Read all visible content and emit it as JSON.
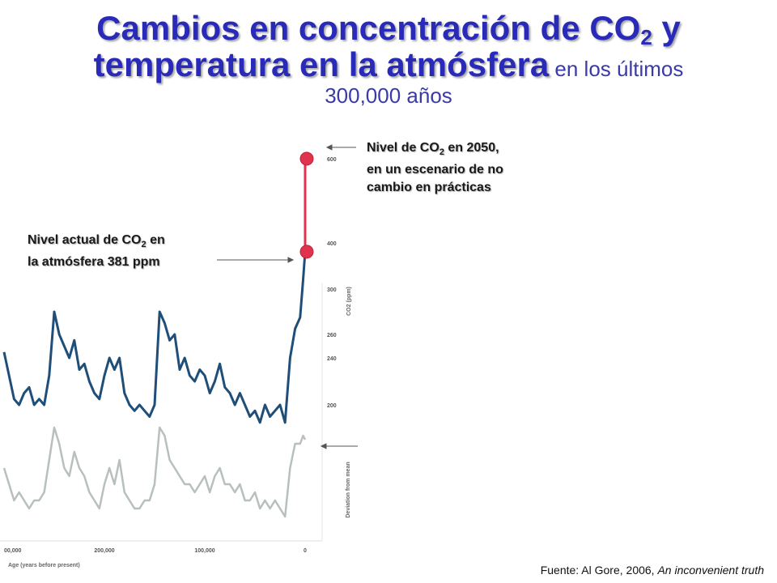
{
  "title": {
    "line1_a": "Cambios en concentración de CO",
    "line1_sub": "2",
    "line1_b": " y",
    "line2_bold": "temperatura en la atmósfera",
    "line2_rest": " en los últimos",
    "line3": "300,000 años"
  },
  "annotations": {
    "future_a": "Nivel de CO",
    "future_sub": "2",
    "future_b": " en 2050,",
    "future_l2": "en un escenario de no",
    "future_l3": "cambio en prácticas",
    "current_a": "Nivel actual de CO",
    "current_sub": "2",
    "current_b": " en",
    "current_l2": "la atmósfera 381 ppm"
  },
  "source": {
    "prefix": "Fuente: Al Gore, 2006, ",
    "work": "An inconvenient truth"
  },
  "colors": {
    "co2_line": "#1f4e79",
    "temp_line": "#b8bfbf",
    "projection": "#e0334e",
    "marker": "#e0334e",
    "title": "#2a2ab8"
  },
  "chart_data": {
    "type": "line",
    "xlabel": "Age (years before present)",
    "x_ticks": [
      "00,000",
      "200,000",
      "100,000",
      "0"
    ],
    "y_label_co2": "CO2 (ppm)",
    "y_ticks_co2": [
      "600",
      "400",
      "300",
      "260",
      "240",
      "200"
    ],
    "y_label_temp": "Deviation from mean",
    "series": [
      {
        "key": "co2",
        "x": [
          300000,
          295000,
          290000,
          285000,
          280000,
          275000,
          270000,
          265000,
          260000,
          255000,
          250000,
          245000,
          240000,
          235000,
          230000,
          225000,
          220000,
          215000,
          210000,
          205000,
          200000,
          195000,
          190000,
          185000,
          180000,
          175000,
          170000,
          165000,
          160000,
          155000,
          150000,
          145000,
          140000,
          135000,
          130000,
          125000,
          120000,
          115000,
          110000,
          105000,
          100000,
          95000,
          90000,
          85000,
          80000,
          75000,
          70000,
          65000,
          60000,
          55000,
          50000,
          45000,
          40000,
          35000,
          30000,
          25000,
          20000,
          15000,
          10000,
          5000,
          2000,
          0
        ],
        "values": [
          245,
          225,
          205,
          200,
          210,
          215,
          200,
          205,
          200,
          225,
          280,
          260,
          250,
          240,
          255,
          230,
          235,
          220,
          210,
          205,
          225,
          240,
          230,
          240,
          210,
          200,
          195,
          200,
          195,
          190,
          200,
          280,
          270,
          255,
          260,
          230,
          240,
          225,
          220,
          230,
          225,
          210,
          220,
          235,
          215,
          210,
          200,
          210,
          200,
          190,
          195,
          185,
          200,
          190,
          195,
          200,
          185,
          240,
          265,
          275,
          320,
          381
        ]
      },
      {
        "key": "temperature",
        "x": [
          300000,
          295000,
          290000,
          285000,
          280000,
          275000,
          270000,
          265000,
          260000,
          255000,
          250000,
          245000,
          240000,
          235000,
          230000,
          225000,
          220000,
          215000,
          210000,
          205000,
          200000,
          195000,
          190000,
          185000,
          180000,
          175000,
          170000,
          165000,
          160000,
          155000,
          150000,
          145000,
          140000,
          135000,
          130000,
          125000,
          120000,
          115000,
          110000,
          105000,
          100000,
          95000,
          90000,
          85000,
          80000,
          75000,
          70000,
          65000,
          60000,
          55000,
          50000,
          45000,
          40000,
          35000,
          30000,
          25000,
          20000,
          15000,
          10000,
          5000,
          2000,
          0
        ],
        "values": [
          -3,
          -5,
          -7,
          -6,
          -7,
          -8,
          -7,
          -7,
          -6,
          -2,
          2,
          0,
          -3,
          -4,
          -1,
          -3,
          -4,
          -6,
          -7,
          -8,
          -5,
          -3,
          -5,
          -2,
          -6,
          -7,
          -8,
          -8,
          -7,
          -7,
          -5,
          2,
          1,
          -2,
          -3,
          -4,
          -5,
          -5,
          -6,
          -5,
          -4,
          -6,
          -4,
          -3,
          -5,
          -5,
          -6,
          -5,
          -7,
          -7,
          -6,
          -8,
          -7,
          -8,
          -7,
          -8,
          -9,
          -3,
          0,
          0,
          1,
          0.5
        ]
      },
      {
        "key": "projection_2050",
        "x": [
          0,
          0
        ],
        "values": [
          381,
          600
        ]
      }
    ],
    "markers": [
      {
        "label": "current",
        "x": 0,
        "value": 381
      },
      {
        "label": "2050",
        "x": 0,
        "value": 600
      }
    ]
  }
}
